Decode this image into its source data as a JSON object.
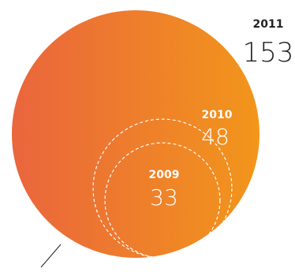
{
  "chart_data": {
    "type": "nested-circles",
    "title": "",
    "series": [
      {
        "year": "2011",
        "value": 153
      },
      {
        "year": "2010",
        "value": 48
      },
      {
        "year": "2009",
        "value": 33
      }
    ]
  },
  "colors": {
    "gradient_start": "#ea653d",
    "gradient_end": "#f2961b",
    "outer_year_text": "#222222",
    "outer_value_text": "#222222",
    "inner_text": "#ffffff",
    "dashed_outline": "#ffffff",
    "leader_line": "#222222"
  }
}
